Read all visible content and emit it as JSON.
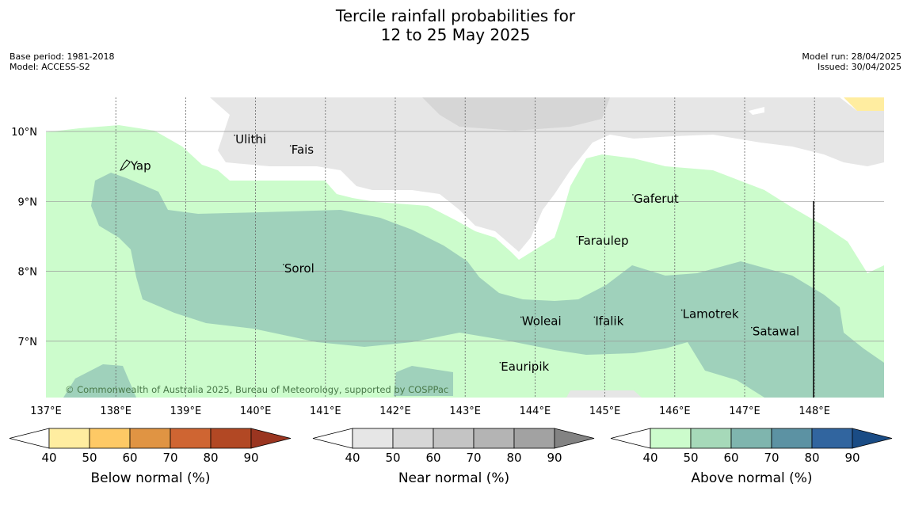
{
  "title": {
    "line1": "Tercile rainfall probabilities for",
    "line2": "12 to 25 May 2025"
  },
  "meta_left": {
    "base_period": "Base period: 1981-2018",
    "model": "Model: ACCESS-S2"
  },
  "meta_right": {
    "model_run": "Model run: 28/04/2025",
    "issued": "Issued: 30/04/2025"
  },
  "map": {
    "lon_ticks": [
      "137°E",
      "138°E",
      "139°E",
      "140°E",
      "141°E",
      "142°E",
      "143°E",
      "144°E",
      "145°E",
      "146°E",
      "147°E",
      "148°E"
    ],
    "lat_ticks": [
      "10°N",
      "9°N",
      "8°N",
      "7°N"
    ],
    "places": [
      {
        "name": "Ulithi",
        "lon": 139.7,
        "lat": 9.9
      },
      {
        "name": "Fais",
        "lon": 140.5,
        "lat": 9.75
      },
      {
        "name": "Yap",
        "lon": 138.2,
        "lat": 9.52
      },
      {
        "name": "Gaferut",
        "lon": 145.4,
        "lat": 9.05
      },
      {
        "name": "Faraulep",
        "lon": 144.6,
        "lat": 8.45
      },
      {
        "name": "Sorol",
        "lon": 140.4,
        "lat": 8.05
      },
      {
        "name": "Lamotrek",
        "lon": 146.1,
        "lat": 7.4
      },
      {
        "name": "Woleai",
        "lon": 143.8,
        "lat": 7.3
      },
      {
        "name": "Ifalik",
        "lon": 144.85,
        "lat": 7.3
      },
      {
        "name": "Satawal",
        "lon": 147.1,
        "lat": 7.15
      },
      {
        "name": "Eauripik",
        "lon": 143.5,
        "lat": 6.65
      }
    ],
    "copyright": "© Commonwealth of Australia 2025, Bureau of Meteorology, supported by COSPPac"
  },
  "colorbars": [
    {
      "label": "Below normal (%)",
      "ticks": [
        "40",
        "50",
        "60",
        "70",
        "80",
        "90"
      ],
      "colors": [
        "#ffeda0",
        "#fec965",
        "#e09443",
        "#cf6532",
        "#b24824",
        "#9a3520"
      ]
    },
    {
      "label": "Near normal (%)",
      "ticks": [
        "40",
        "50",
        "60",
        "70",
        "80",
        "90"
      ],
      "colors": [
        "#e6e6e6",
        "#d7d7d7",
        "#c4c4c4",
        "#b4b4b4",
        "#a2a2a2",
        "#838383"
      ]
    },
    {
      "label": "Above normal (%)",
      "ticks": [
        "40",
        "50",
        "60",
        "70",
        "80",
        "90"
      ],
      "colors": [
        "#ccfccc",
        "#a6d9b9",
        "#7fb5ae",
        "#5c92a3",
        "#31659f",
        "#1a4c85"
      ]
    }
  ]
}
